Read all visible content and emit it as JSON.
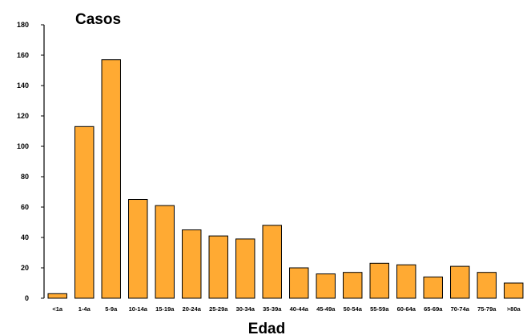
{
  "chart_data": {
    "type": "bar",
    "ylabel": "Casos",
    "xlabel": "Edad",
    "ylim": [
      0,
      180
    ],
    "yticks": [
      "0",
      "20",
      "40",
      "60",
      "80",
      "100",
      "120",
      "140",
      "160",
      "180"
    ],
    "grid": false,
    "legend": "none",
    "bar_color": "#FFAA33",
    "categories": [
      "<1a",
      "1-4a",
      "5-9a",
      "10-14a",
      "15-19a",
      "20-24a",
      "25-29a",
      "30-34a",
      "35-39a",
      "40-44a",
      "45-49a",
      "50-54a",
      "55-59a",
      "60-64a",
      "65-69a",
      "70-74a",
      "75-79a",
      ">80a"
    ],
    "values": [
      3,
      113,
      157,
      65,
      61,
      45,
      41,
      39,
      48,
      20,
      16,
      17,
      23,
      22,
      14,
      21,
      17,
      10
    ]
  }
}
